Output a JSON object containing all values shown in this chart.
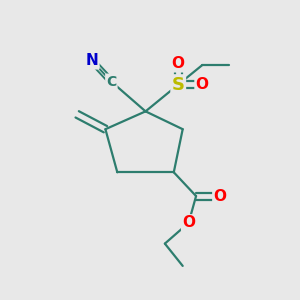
{
  "background_color": "#e8e8e8",
  "bond_color": "#2d7d6e",
  "bond_width": 1.6,
  "atom_colors": {
    "N": "#0000cc",
    "O": "#ff0000",
    "S": "#bbbb00",
    "C": "#2d7d6e"
  },
  "figsize": [
    3.0,
    3.0
  ],
  "dpi": 100
}
